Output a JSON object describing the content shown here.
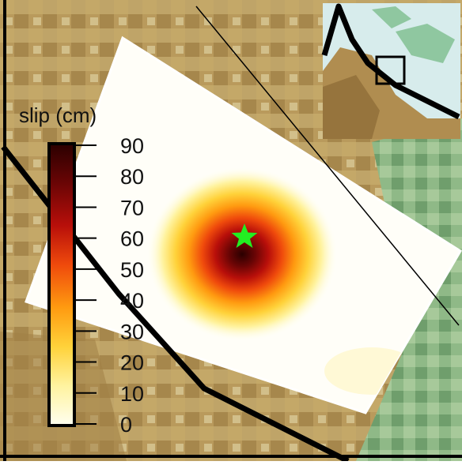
{
  "colorbar": {
    "title": "slip (cm)",
    "min": 0,
    "max": 90,
    "ticks": [
      "90",
      "80",
      "70",
      "60",
      "50",
      "40",
      "30",
      "20",
      "10",
      "0"
    ],
    "colors": [
      "#fffff0",
      "#fff3a0",
      "#ffd23a",
      "#ff9a10",
      "#ef4a0c",
      "#b80f0a",
      "#6a0505",
      "#2a0000"
    ]
  },
  "epicenter": {
    "marker": "star-icon",
    "color": "#22ee22"
  },
  "slip_patch": {
    "peak_slip_cm": 90
  },
  "map": {
    "terrain_low": "#a88a4a",
    "terrain_mid": "#c9b27a",
    "terrain_high": "#7fae7a",
    "fault_color": "#000000"
  },
  "inset": {
    "type": "location-map",
    "box": "study-area-box"
  }
}
